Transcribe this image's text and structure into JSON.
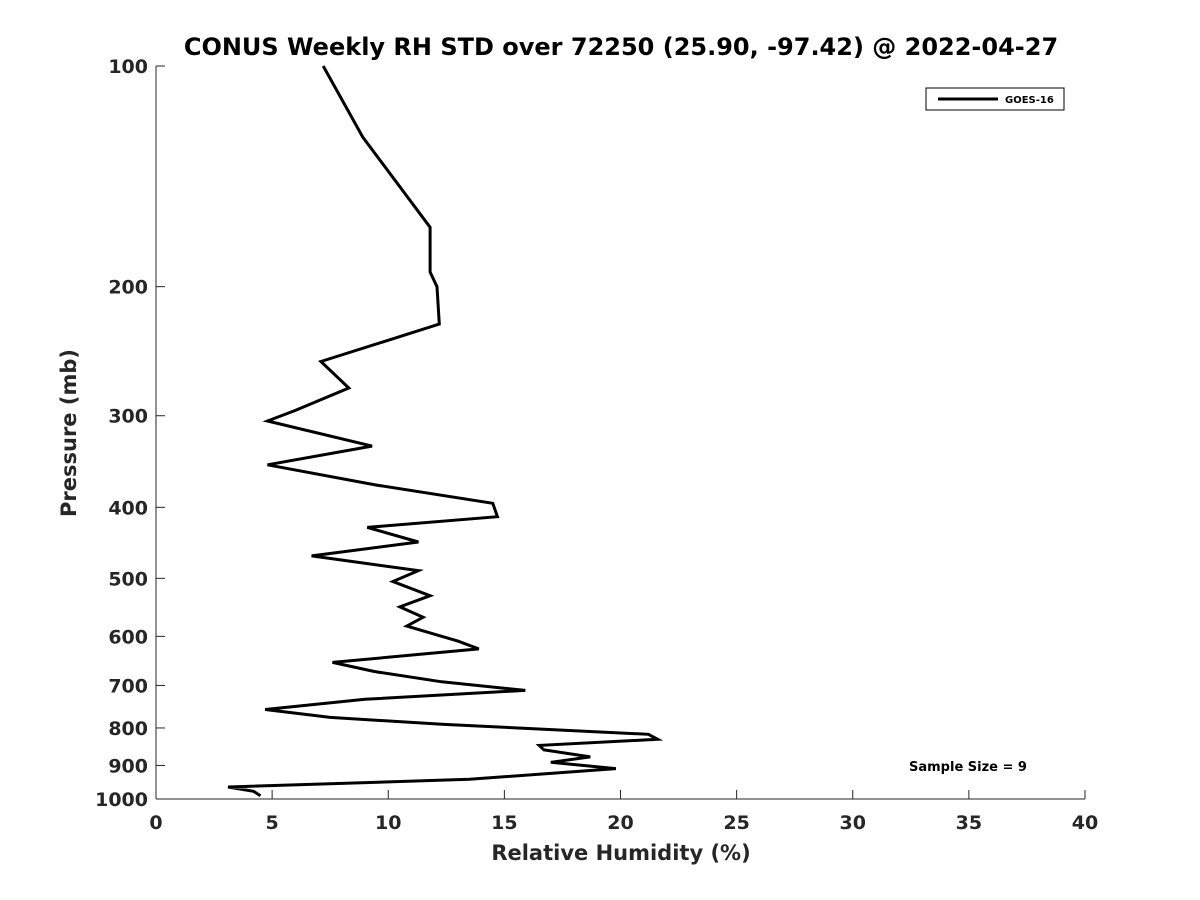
{
  "chart_data": {
    "type": "line",
    "title": "CONUS Weekly RH STD over 72250 (25.90, -97.42) @ 2022-04-27",
    "xlabel": "Relative Humidity (%)",
    "ylabel": "Pressure (mb)",
    "xlim": [
      0,
      40
    ],
    "ylim": [
      100,
      1000
    ],
    "yscale": "log",
    "y_reversed": true,
    "xticks": [
      0,
      5,
      10,
      15,
      20,
      25,
      30,
      35,
      40
    ],
    "xtick_labels": [
      "0",
      "5",
      "10",
      "15",
      "20",
      "25",
      "30",
      "35",
      "40"
    ],
    "yticks": [
      100,
      200,
      300,
      400,
      500,
      600,
      700,
      800,
      900,
      1000
    ],
    "ytick_labels": [
      "100",
      "200",
      "300",
      "400",
      "500",
      "600",
      "700",
      "800",
      "900",
      "1000"
    ],
    "grid": false,
    "legend_position": "top-right",
    "annotation": "Sample Size = 9",
    "series": [
      {
        "name": "GOES-16",
        "color": "#000000",
        "points": [
          [
            7.2,
            100
          ],
          [
            8.9,
            125
          ],
          [
            11.8,
            166
          ],
          [
            11.8,
            191
          ],
          [
            12.1,
            200
          ],
          [
            12.2,
            225
          ],
          [
            7.1,
            253
          ],
          [
            8.3,
            275
          ],
          [
            6.0,
            295
          ],
          [
            4.8,
            305
          ],
          [
            9.3,
            330
          ],
          [
            4.8,
            350
          ],
          [
            9.5,
            373
          ],
          [
            14.5,
            395
          ],
          [
            14.7,
            412
          ],
          [
            9.1,
            426
          ],
          [
            11.3,
            446
          ],
          [
            6.7,
            466
          ],
          [
            11.3,
            488
          ],
          [
            10.2,
            505
          ],
          [
            11.8,
            528
          ],
          [
            10.5,
            547
          ],
          [
            11.5,
            565
          ],
          [
            10.8,
            581
          ],
          [
            13.0,
            609
          ],
          [
            13.9,
            624
          ],
          [
            7.6,
            651
          ],
          [
            9.4,
            670
          ],
          [
            12.3,
            692
          ],
          [
            15.9,
            711
          ],
          [
            9.0,
            731
          ],
          [
            4.7,
            755
          ],
          [
            7.5,
            774
          ],
          [
            12.4,
            791
          ],
          [
            21.2,
            816
          ],
          [
            21.6,
            829
          ],
          [
            16.5,
            845
          ],
          [
            16.7,
            857
          ],
          [
            18.7,
            876
          ],
          [
            17.0,
            891
          ],
          [
            19.8,
            909
          ],
          [
            13.5,
            940
          ],
          [
            3.1,
            963
          ],
          [
            4.2,
            976
          ],
          [
            4.5,
            990
          ]
        ]
      }
    ]
  }
}
